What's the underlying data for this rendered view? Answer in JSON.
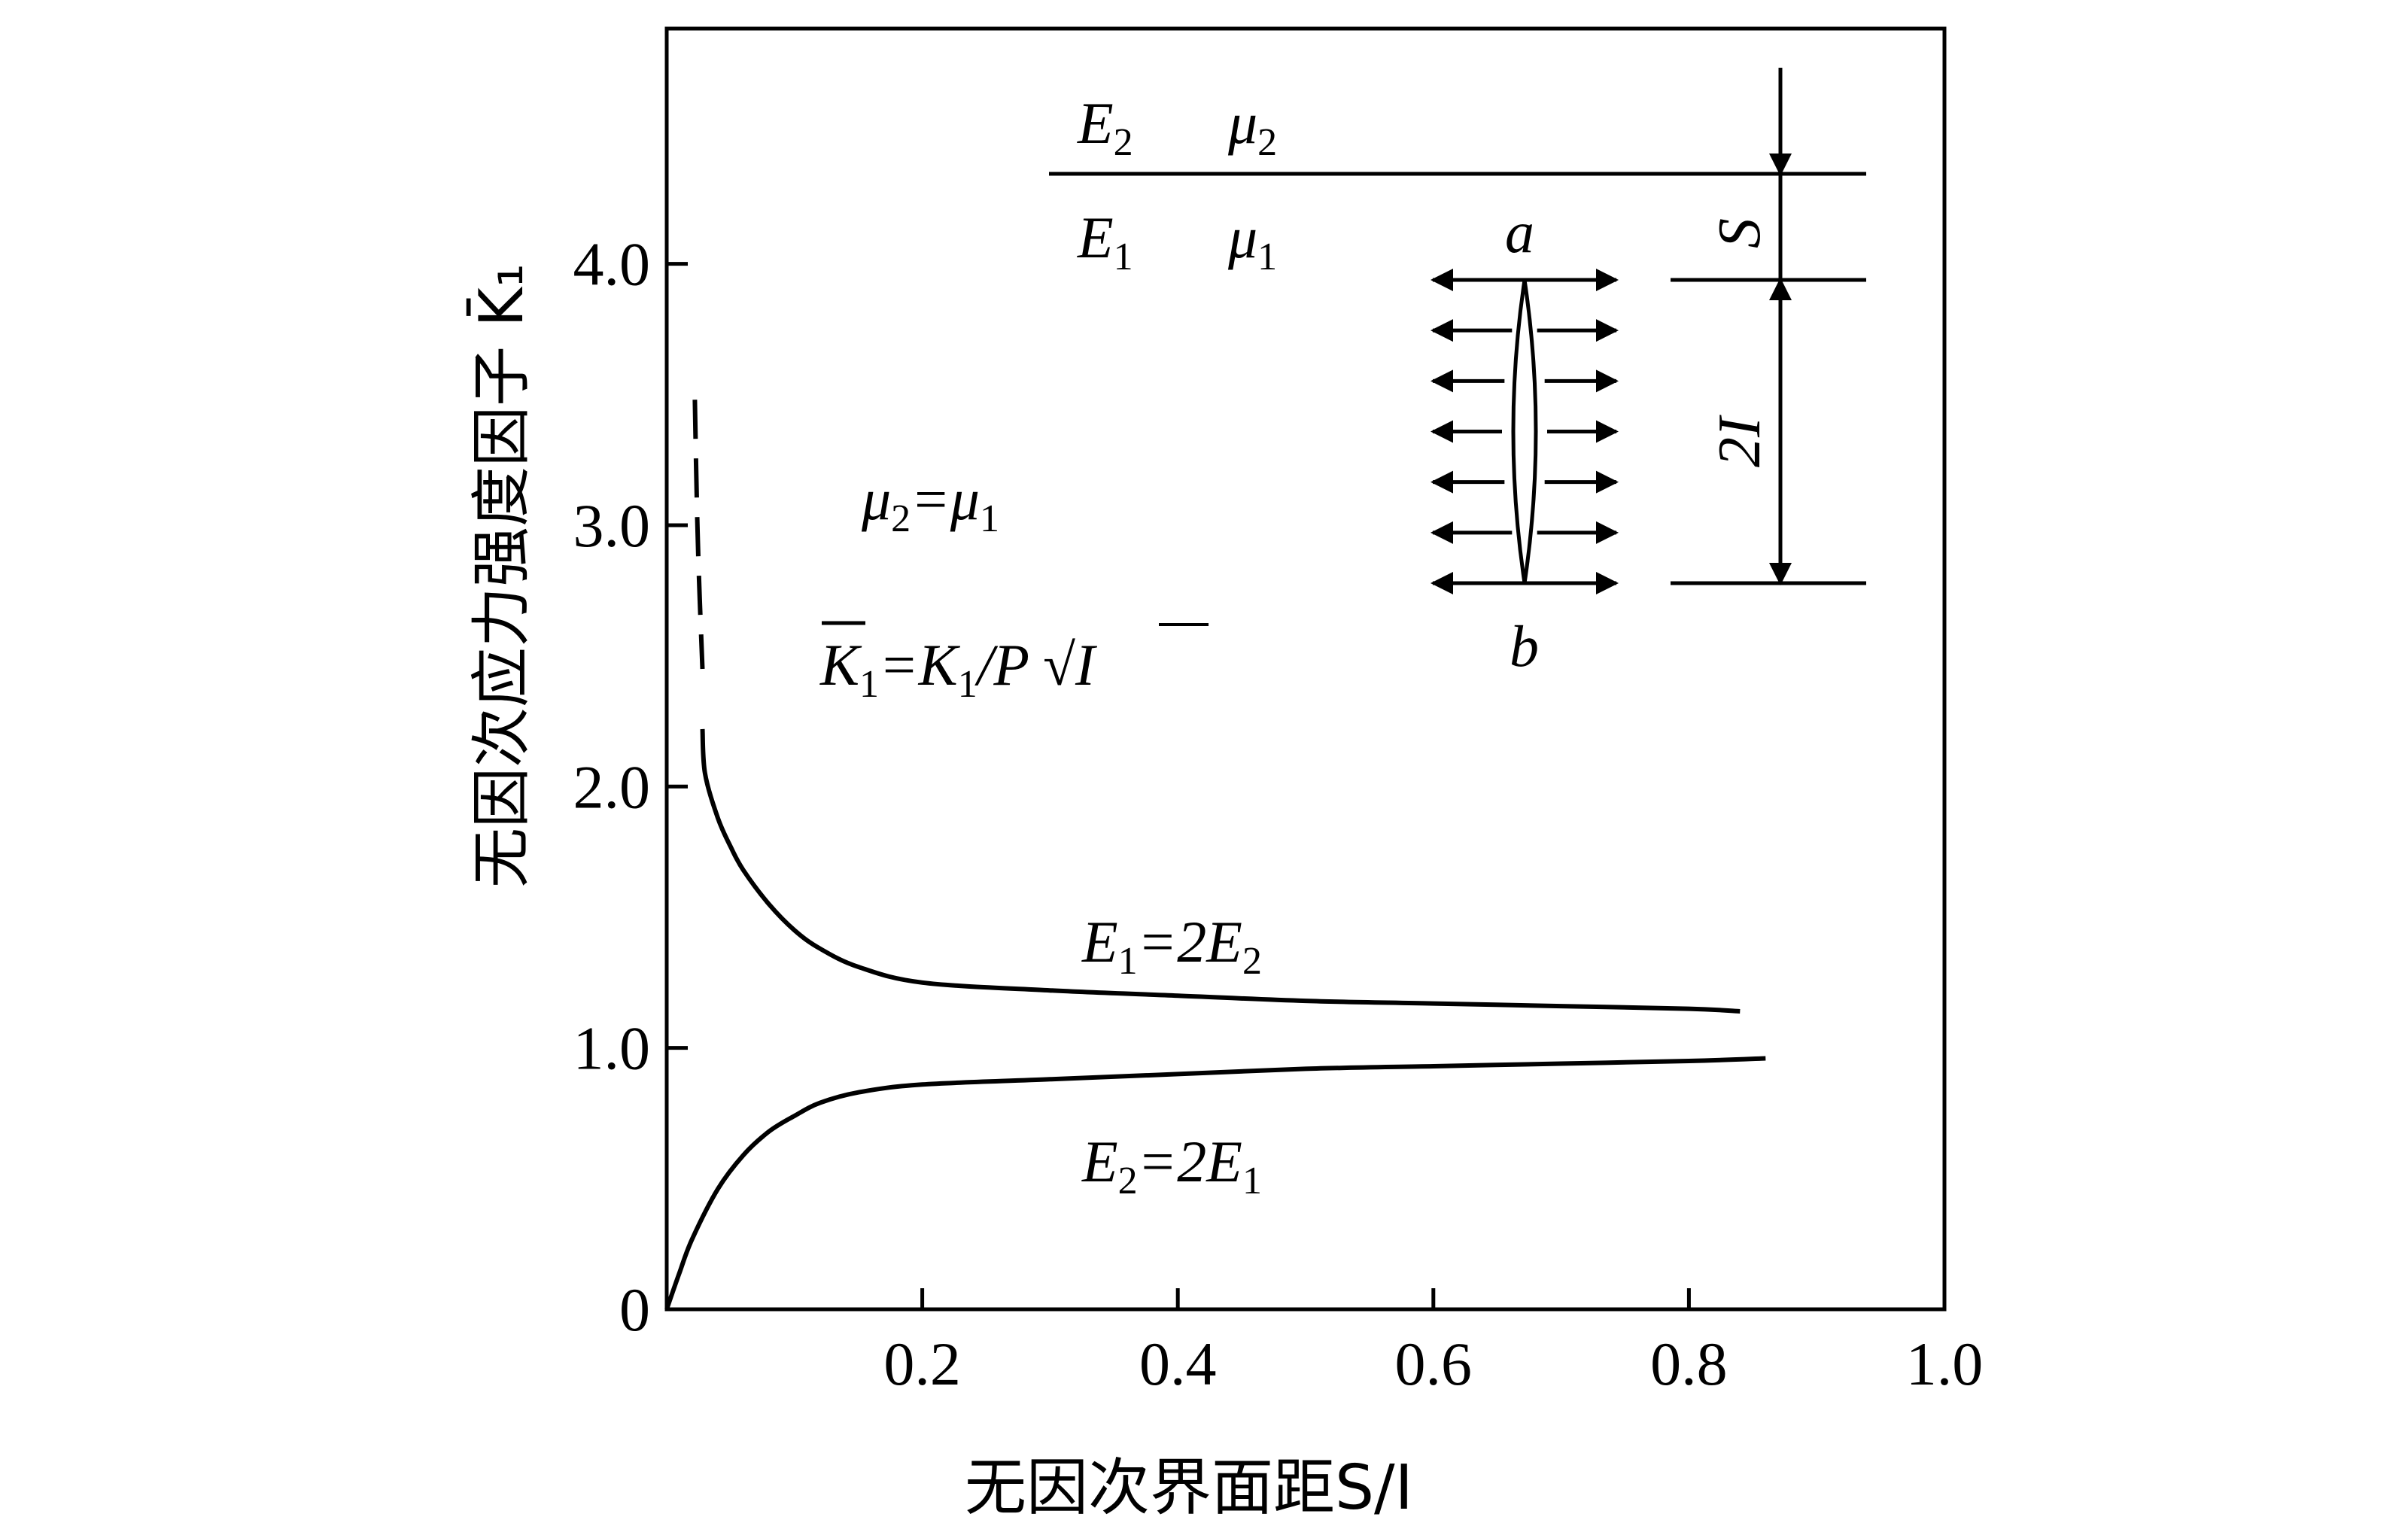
{
  "chart_data": {
    "type": "line",
    "xlabel": "无因次界面距S/I",
    "ylabel": "无因次应力强度因子 K̄₁",
    "xlim": [
      0,
      1.0
    ],
    "ylim": [
      0,
      4.9
    ],
    "x_ticks": [
      {
        "value": 0.2,
        "label": "0.2"
      },
      {
        "value": 0.4,
        "label": "0.4"
      },
      {
        "value": 0.6,
        "label": "0.6"
      },
      {
        "value": 0.8,
        "label": "0.8"
      },
      {
        "value": 1.0,
        "label": "1.0"
      }
    ],
    "y_ticks": [
      {
        "value": 0,
        "label": "0"
      },
      {
        "value": 1.0,
        "label": "1.0"
      },
      {
        "value": 2.0,
        "label": "2.0"
      },
      {
        "value": 3.0,
        "label": "3.0"
      },
      {
        "value": 4.0,
        "label": "4.0"
      }
    ],
    "grid": false,
    "series": [
      {
        "name": "E₁=2E₂",
        "style": "solid",
        "x": [
          0.028,
          0.03,
          0.04,
          0.05,
          0.06,
          0.08,
          0.1,
          0.12,
          0.15,
          0.2,
          0.3,
          0.4,
          0.5,
          0.6,
          0.7,
          0.8,
          0.84
        ],
        "y": [
          2.22,
          2.05,
          1.88,
          1.77,
          1.68,
          1.55,
          1.45,
          1.38,
          1.31,
          1.25,
          1.22,
          1.2,
          1.18,
          1.17,
          1.16,
          1.15,
          1.14
        ]
      },
      {
        "name": "",
        "style": "dashed",
        "x": [
          0.022,
          0.024,
          0.026,
          0.028
        ],
        "y": [
          3.48,
          3.0,
          2.7,
          2.45
        ]
      },
      {
        "name": "E₂=2E₁",
        "style": "solid",
        "x": [
          0.0,
          0.01,
          0.02,
          0.04,
          0.06,
          0.08,
          0.1,
          0.12,
          0.15,
          0.2,
          0.3,
          0.4,
          0.5,
          0.6,
          0.7,
          0.8,
          0.86
        ],
        "y": [
          0.0,
          0.14,
          0.27,
          0.46,
          0.59,
          0.68,
          0.74,
          0.79,
          0.83,
          0.86,
          0.88,
          0.9,
          0.92,
          0.93,
          0.94,
          0.95,
          0.96
        ]
      }
    ]
  },
  "annotations": {
    "mu_relation": {
      "mu1": "μ",
      "sub1": "2",
      "eq": "=μ",
      "sub2": "1"
    },
    "k_definition": {
      "k": "K",
      "sub": "1",
      "eq": "=K",
      "sub2": "1",
      "over": "/P ",
      "root": "√",
      "under_root": "I"
    }
  },
  "inset": {
    "upper_material": {
      "e": "E",
      "e_sub": "2",
      "mu": "μ",
      "mu_sub": "2"
    },
    "lower_material": {
      "e": "E",
      "e_sub": "1",
      "mu": "μ",
      "mu_sub": "1"
    },
    "crack_top": "a",
    "crack_bottom": "b",
    "distance_label": "S",
    "crack_length_label": "2I"
  },
  "series_labels": {
    "upper": {
      "e1": "E",
      "s1": "1",
      "mid": "=2E",
      "s2": "2"
    },
    "lower": {
      "e1": "E",
      "s1": "2",
      "mid": "=2E",
      "s2": "1"
    }
  },
  "colors": {
    "line": "#000000",
    "background": "#ffffff"
  }
}
